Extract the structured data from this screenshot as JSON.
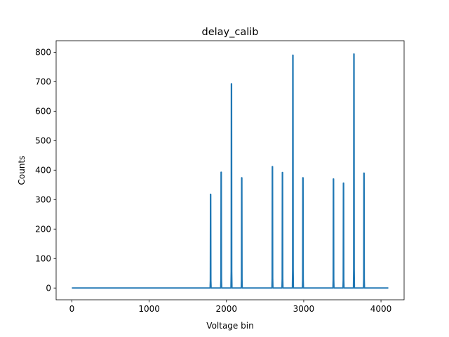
{
  "chart_data": {
    "type": "line",
    "title": "delay_calib",
    "xlabel": "Voltage bin",
    "ylabel": "Counts",
    "xlim": [
      -204,
      4299
    ],
    "ylim": [
      -40,
      839
    ],
    "xticks": [
      0,
      1000,
      2000,
      3000,
      4000
    ],
    "yticks": [
      0,
      100,
      200,
      300,
      400,
      500,
      600,
      700,
      800
    ],
    "grid": false,
    "color": "#1f77b4",
    "x_range": [
      0,
      4095
    ],
    "baseline": 0,
    "peaks": [
      {
        "x": 1795,
        "y": 318
      },
      {
        "x": 1932,
        "y": 393
      },
      {
        "x": 2065,
        "y": 693
      },
      {
        "x": 2198,
        "y": 374
      },
      {
        "x": 2595,
        "y": 412
      },
      {
        "x": 2725,
        "y": 392
      },
      {
        "x": 2860,
        "y": 790
      },
      {
        "x": 2990,
        "y": 374
      },
      {
        "x": 3385,
        "y": 370
      },
      {
        "x": 3515,
        "y": 356
      },
      {
        "x": 3650,
        "y": 794
      },
      {
        "x": 3780,
        "y": 390
      }
    ]
  }
}
